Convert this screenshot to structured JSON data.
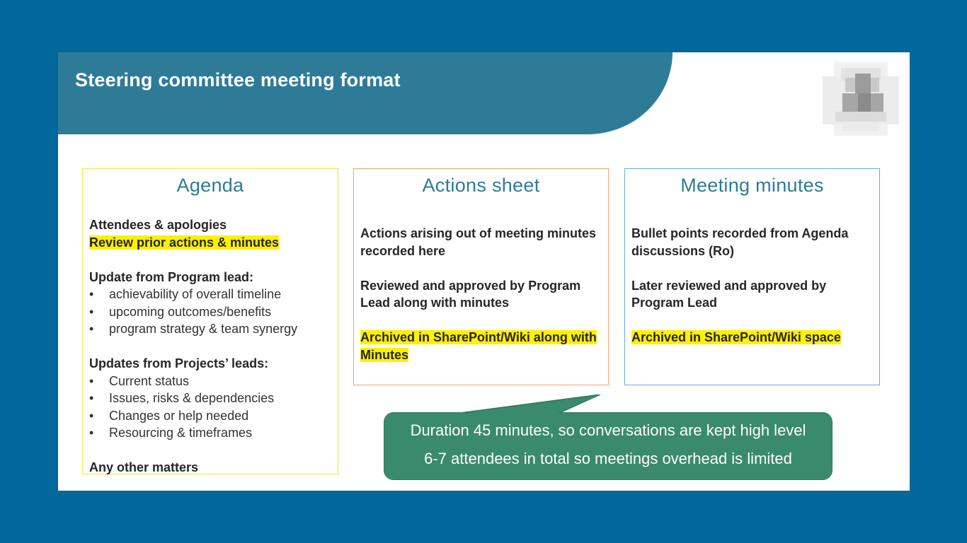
{
  "slide": {
    "title": "Steering committee meeting format"
  },
  "agenda": {
    "heading": "Agenda",
    "attendees": "Attendees & apologies",
    "review": "Review prior actions & minutes",
    "program_update_heading": "Update from Program lead:",
    "program_items": [
      "achievability of overall timeline",
      "upcoming outcomes/benefits",
      "program strategy & team synergy"
    ],
    "projects_update_heading": "Updates from Projects’ leads:",
    "project_items": [
      "Current status",
      "Issues, risks & dependencies",
      "Changes or help needed",
      "Resourcing & timeframes"
    ],
    "other": "Any other matters"
  },
  "actions": {
    "heading": "Actions sheet",
    "p1_line1": "Actions arising out of meeting minutes",
    "p1_line2": "recorded here",
    "p2_line1": "Reviewed and approved by Program",
    "p2_line2": "Lead along with minutes",
    "p3_line1": "Archived in SharePoint/Wiki along with",
    "p3_line2": "Minutes"
  },
  "minutes": {
    "heading": "Meeting minutes",
    "p1_line1": "Bullet points recorded from Agenda",
    "p1_line2": "discussions (Ro)",
    "p2_line1": "Later reviewed and approved by",
    "p2_line2": "Program Lead",
    "p3": "Archived in SharePoint/Wiki space"
  },
  "callout": {
    "line1": "Duration 45 minutes, so conversations are kept high level",
    "line2": "6-7 attendees in total so meetings overhead is limited"
  },
  "colors": {
    "background": "#02679a",
    "header": "#2e7b98",
    "highlight": "#fff000",
    "callout": "#3a8a6e"
  }
}
